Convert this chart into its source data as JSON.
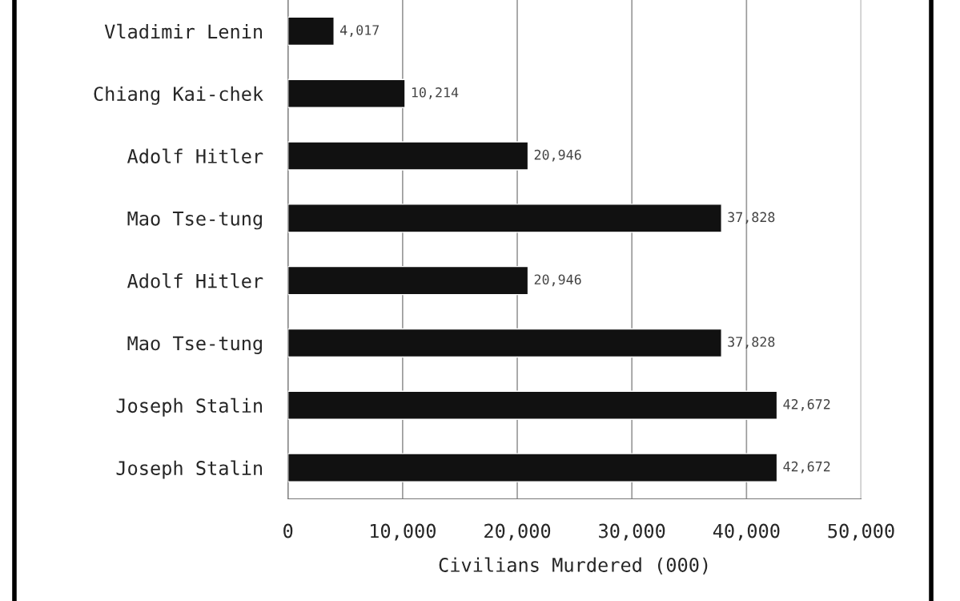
{
  "chart_data": {
    "type": "bar",
    "orientation": "horizontal",
    "xlabel": "Civilians Murdered (000)",
    "categories": [
      "Vladimir Lenin",
      "Chiang Kai-chek",
      "Adolf Hitler",
      "Mao Tse-tung",
      "Adolf Hitler",
      "Mao Tse-tung",
      "Joseph Stalin",
      "Joseph Stalin"
    ],
    "values": [
      4017,
      10214,
      20946,
      37828,
      20946,
      37828,
      42672,
      42672
    ],
    "value_labels": [
      "4,017",
      "10,214",
      "20,946",
      "37,828",
      "20,946",
      "37,828",
      "42,672",
      "42,672"
    ],
    "color": "#111111",
    "xlim": [
      0,
      50000
    ],
    "xticks": [
      0,
      {
        "value": 10000,
        "label": "10,000"
      },
      {
        "value": 20000,
        "label": "20,000"
      },
      {
        "value": 30000,
        "label": "30,000"
      },
      {
        "value": 40000,
        "label": "40,000"
      },
      {
        "value": 50000,
        "label": "50,000"
      }
    ],
    "grid": "x"
  }
}
